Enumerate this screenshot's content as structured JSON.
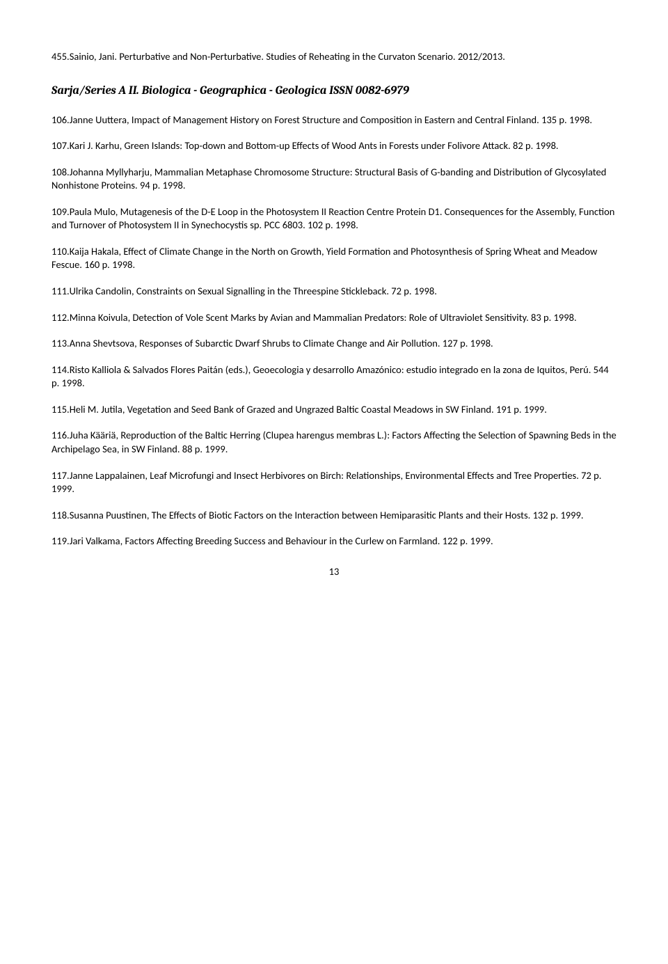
{
  "topEntry": "455.Sainio, Jani. Perturbative and Non-Perturbative. Studies of Reheating in the Curvaton Scenario. 2012/2013.",
  "seriesHeading": "Sarja/Series A II. Biologica - Geographica - Geologica   ISSN 0082-6979",
  "entries": [
    "106.Janne Uuttera, Impact of Management History on Forest Structure and Composition in Eastern and Central Finland. 135 p. 1998.",
    "107.Kari J. Karhu, Green Islands: Top-down and Bottom-up Effects of Wood Ants in Forests under Folivore Attack. 82 p. 1998.",
    "108.Johanna Myllyharju, Mammalian Metaphase Chromosome Structure: Structural Basis of G-banding and Distribution of Glycosylated Nonhistone Proteins. 94 p. 1998.",
    "109.Paula Mulo, Mutagenesis of the D-E Loop in the Photosystem II Reaction Centre Protein D1. Consequences for the Assembly, Function and Turnover of Photosystem II in Synechocystis sp.  PCC 6803. 102 p. 1998.",
    "110.Kaija Hakala, Effect of Climate Change in the North on Growth, Yield Formation and Photosynthesis of Spring Wheat and Meadow Fescue. 160 p. 1998.",
    "111.Ulrika Candolin, Constraints on Sexual Signalling in the Threespine Stickleback. 72 p. 1998.",
    "112.Minna Koivula, Detection of Vole Scent Marks by Avian and Mammalian Predators: Role of Ultraviolet Sensitivity. 83 p. 1998.",
    "113.Anna Shevtsova, Responses of Subarctic Dwarf Shrubs to Climate Change and Air Pollution. 127 p. 1998.",
    "114.Risto Kalliola & Salvados Flores Paitán (eds.), Geoecologia y desarrollo Amazónico: estudio integrado en la zona de Iquitos, Perú. 544 p. 1998.",
    "115.Heli M. Jutila, Vegetation and Seed Bank of Grazed and Ungrazed Baltic Coastal Meadows in SW Finland. 191 p. 1999.",
    "116.Juha Kääriä, Reproduction of the Baltic Herring (Clupea harengus membras L.): Factors Affecting the Selection of Spawning Beds in the Archipelago Sea, in SW Finland. 88 p. 1999.",
    "117.Janne Lappalainen, Leaf Microfungi and Insect Herbivores on Birch: Relationships, Environmental Effects and Tree Properties. 72 p. 1999.",
    "118.Susanna Puustinen, The Effects of Biotic Factors on the Interaction between Hemiparasitic Plants and their Hosts. 132 p. 1999.",
    "119.Jari Valkama, Factors Affecting Breeding Success and Behaviour in the Curlew on Farmland. 122 p. 1999."
  ],
  "pageNumber": "13"
}
